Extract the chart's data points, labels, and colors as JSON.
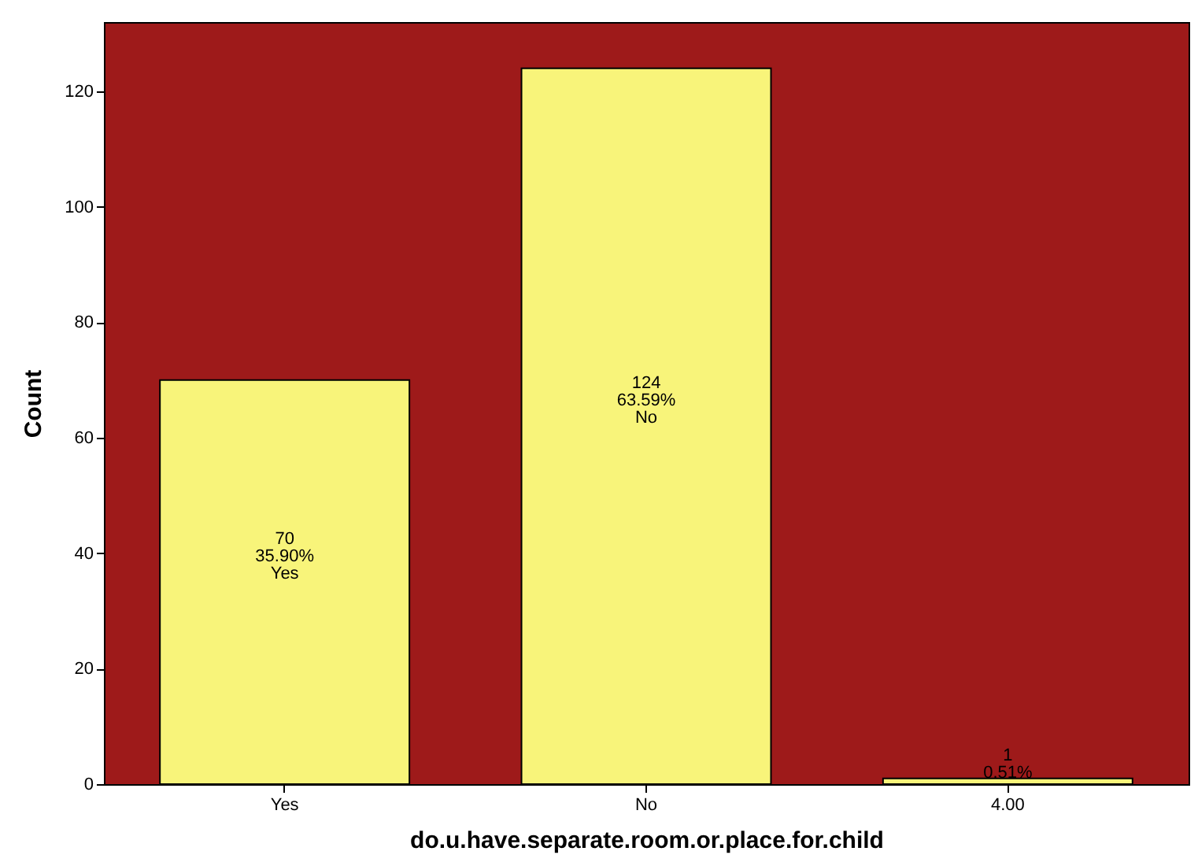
{
  "chart_data": {
    "type": "bar",
    "xlabel": "do.u.have.separate.room.or.place.for.child",
    "ylabel": "Count",
    "categories": [
      "Yes",
      "No",
      "4.00"
    ],
    "values": [
      70,
      124,
      1
    ],
    "color": "#f8f47a",
    "value_labels": [
      "70\n35.90%\nYes",
      "124\n63.59%\nNo",
      "1\n0.51%"
    ],
    "ylim": [
      0,
      132
    ],
    "yticks": [
      0,
      20,
      40,
      60,
      80,
      100,
      120
    ],
    "grid": false
  }
}
